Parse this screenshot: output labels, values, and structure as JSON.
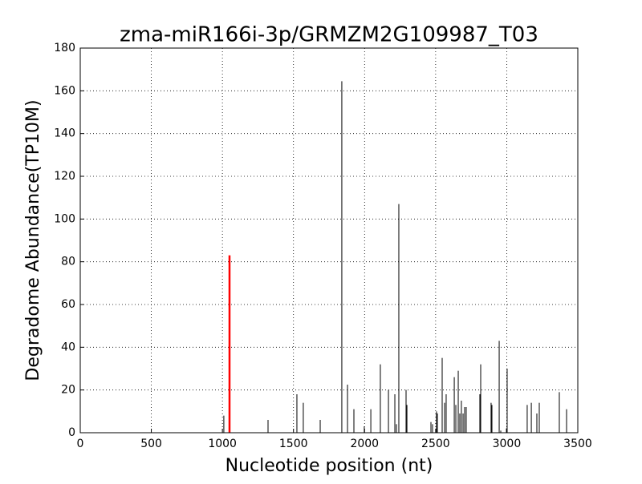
{
  "chart_data": {
    "type": "vlines",
    "title": "zma-miR166i-3p/GRMZM2G109987_T03",
    "xlabel": "Nucleotide position (nt)",
    "ylabel": "Degradome Abundance(TP10M)",
    "xlim": [
      0,
      3500
    ],
    "xticks": [
      0,
      500,
      1000,
      1500,
      2000,
      2500,
      3000,
      3500
    ],
    "ylim": [
      0,
      180
    ],
    "yticks": [
      0,
      20,
      40,
      60,
      80,
      100,
      120,
      140,
      160,
      180
    ],
    "grid": true,
    "series": [
      {
        "color": "#000000",
        "x": [
          1010,
          1321,
          1524,
          1569,
          1688,
          1840,
          1880,
          1925,
          1998,
          2044,
          2111,
          2168,
          2213,
          2224,
          2241,
          2292,
          2298,
          2467,
          2478,
          2506,
          2512,
          2546,
          2563,
          2574,
          2631,
          2642,
          2659,
          2670,
          2681,
          2693,
          2704,
          2715,
          2811,
          2817,
          2890,
          2896,
          2947,
          2958,
          2998,
          3003,
          3144,
          3173,
          3212,
          3229,
          3370,
          3421
        ],
        "values": [
          8,
          6,
          18,
          14,
          6,
          164.5,
          22.5,
          11,
          3,
          11,
          32,
          20,
          18,
          4,
          107,
          20,
          13,
          5,
          4,
          10,
          9,
          35,
          14,
          18,
          26,
          13,
          29,
          9,
          15,
          9,
          12,
          12,
          18,
          32,
          14,
          13,
          43,
          1,
          2,
          30,
          13,
          14,
          9,
          14,
          19,
          11
        ]
      },
      {
        "color": "#ff0000",
        "x": [
          1050
        ],
        "values": [
          83
        ]
      }
    ]
  }
}
